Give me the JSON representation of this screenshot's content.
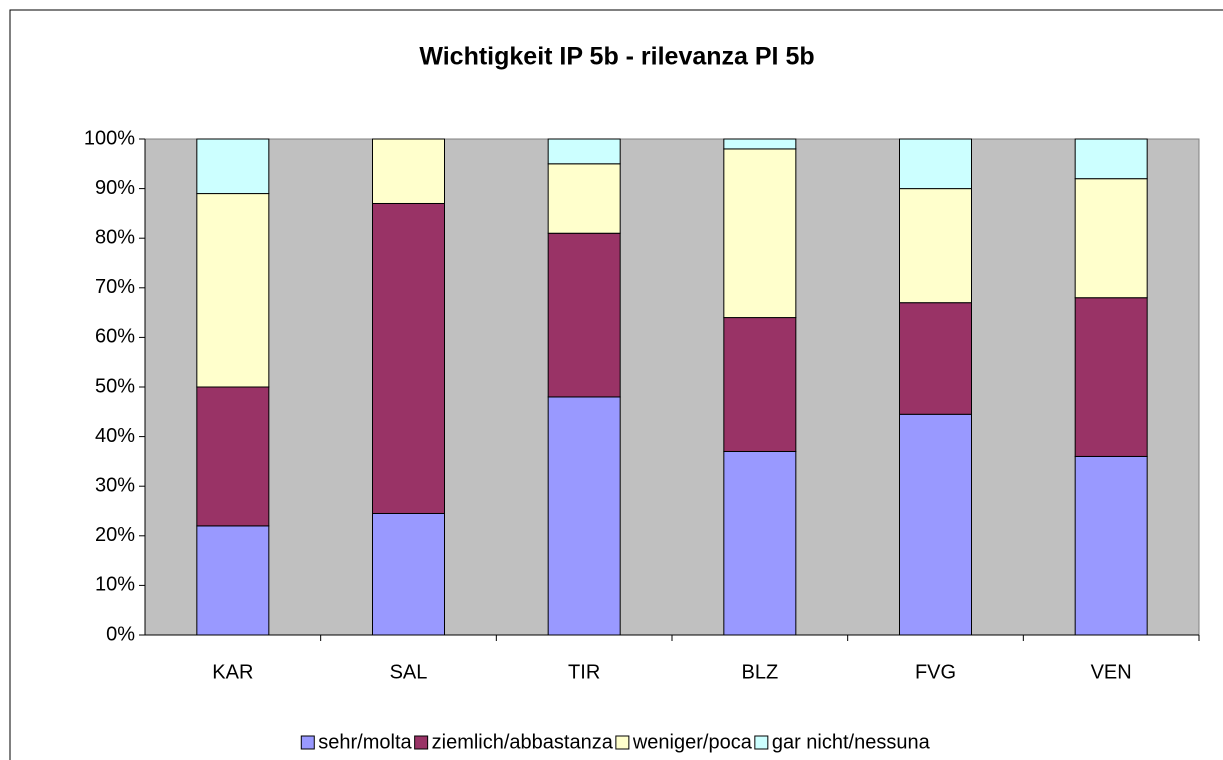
{
  "chart_data": {
    "type": "stacked_bar",
    "title": "Wichtigkeit IP 5b - rilevanza PI 5b",
    "categories": [
      "KAR",
      "SAL",
      "TIR",
      "BLZ",
      "FVG",
      "VEN"
    ],
    "series": [
      {
        "name": "sehr/molta",
        "color": "#9999ff",
        "values": [
          22,
          24.5,
          48,
          37,
          44.5,
          36
        ]
      },
      {
        "name": "ziemlich/abbastanza",
        "color": "#993366",
        "values": [
          28,
          62.5,
          33,
          27,
          22.5,
          32
        ]
      },
      {
        "name": "weniger/poca",
        "color": "#ffffcc",
        "values": [
          39,
          13,
          14,
          34,
          23,
          24
        ]
      },
      {
        "name": "gar nicht/nessuna",
        "color": "#ccffff",
        "values": [
          11,
          0,
          5,
          2,
          10,
          8
        ]
      }
    ],
    "ylim": [
      0,
      100
    ],
    "yticks": [
      {
        "value": 0,
        "label": "0%"
      },
      {
        "value": 10,
        "label": "10%"
      },
      {
        "value": 20,
        "label": "20%"
      },
      {
        "value": 30,
        "label": "30%"
      },
      {
        "value": 40,
        "label": "40%"
      },
      {
        "value": 50,
        "label": "50%"
      },
      {
        "value": 60,
        "label": "60%"
      },
      {
        "value": 70,
        "label": "70%"
      },
      {
        "value": 80,
        "label": "80%"
      },
      {
        "value": 90,
        "label": "90%"
      },
      {
        "value": 100,
        "label": "100%"
      }
    ],
    "plot_background": "#c0c0c0",
    "legend": "bottom"
  }
}
